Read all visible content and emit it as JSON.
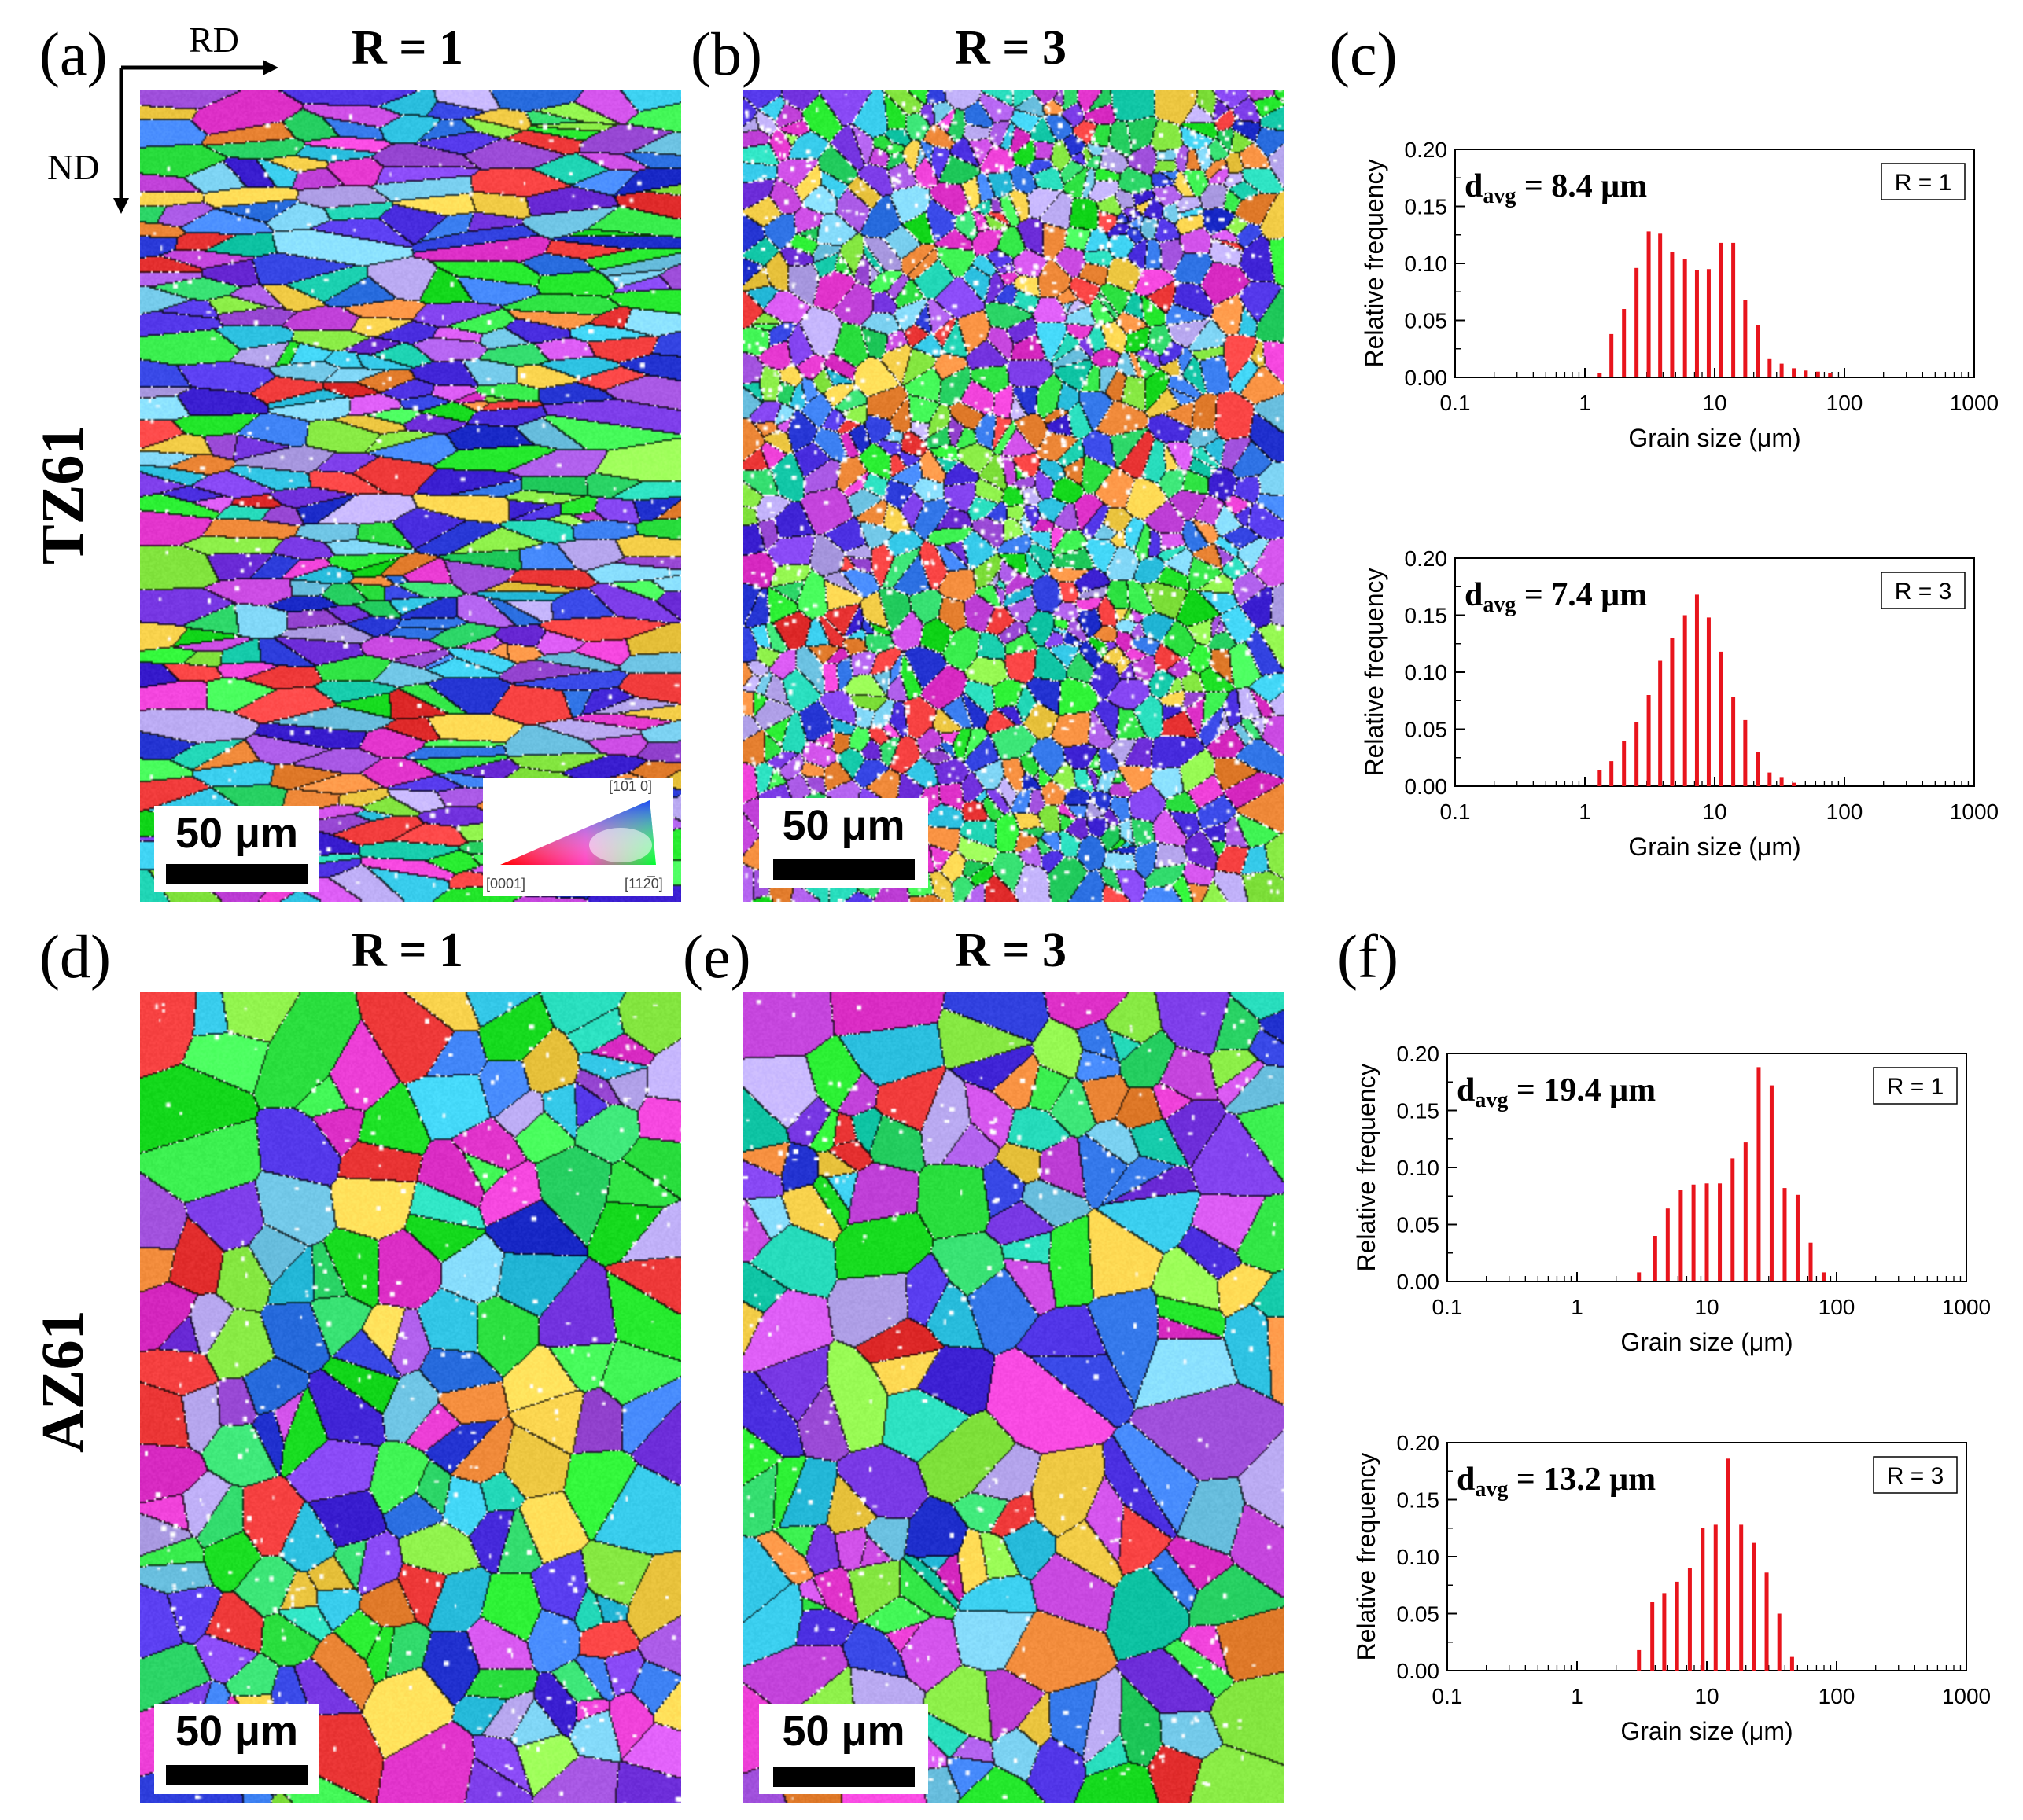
{
  "figure": {
    "panel_labels": [
      "(a)",
      "(b)",
      "(c)",
      "(d)",
      "(e)",
      "(f)"
    ],
    "row_labels": [
      "TZ61",
      "AZ61"
    ],
    "map_titles": [
      "R = 1",
      "R = 3",
      "R = 1",
      "R = 3"
    ],
    "axes_indicator": {
      "horizontal": "RD",
      "vertical": "ND"
    },
    "scale_bar_text": "50 μm",
    "ipf_key": {
      "top": "[10̅1 0]",
      "bottom_left": "[0001]",
      "bottom_right": "[112̅0]"
    },
    "map_palette": [
      "#22e62a",
      "#3cf050",
      "#2fd86a",
      "#1fd4b4",
      "#34c8e8",
      "#3a7ef0",
      "#2a3ad8",
      "#4a2ee0",
      "#7a3ae6",
      "#a454e0",
      "#d050e8",
      "#e83ad2",
      "#ef3a3a",
      "#f08a3a",
      "#f6d04a",
      "#8ef04a",
      "#b8a8f0",
      "#7ad0f0"
    ]
  },
  "chart_data": [
    {
      "id": "c-top",
      "type": "bar",
      "xscale": "log",
      "xlim": [
        0.1,
        1000
      ],
      "ylim": [
        0,
        0.2
      ],
      "xticks": [
        "0.1",
        "1",
        "10",
        "100",
        "1000"
      ],
      "yticks": [
        "0.00",
        "0.05",
        "0.10",
        "0.15",
        "0.20"
      ],
      "xlabel": "Grain size (μm)",
      "ylabel": "Relative frequency",
      "annotation": {
        "prefix": "d",
        "subscript": "avg",
        "text": " = 8.4 μm"
      },
      "legend": "R = 1",
      "color": "#e8141c",
      "x": [
        1.3,
        1.6,
        2.0,
        2.5,
        3.1,
        3.8,
        4.7,
        5.9,
        7.3,
        9.0,
        11.2,
        13.9,
        17.2,
        21.4,
        26.5,
        32.8,
        40.7,
        50.4,
        62.5,
        77.5
      ],
      "values": [
        0.004,
        0.038,
        0.06,
        0.096,
        0.128,
        0.126,
        0.11,
        0.104,
        0.094,
        0.095,
        0.118,
        0.118,
        0.068,
        0.046,
        0.016,
        0.012,
        0.008,
        0.006,
        0.005,
        0.004
      ]
    },
    {
      "id": "c-bottom",
      "type": "bar",
      "xscale": "log",
      "xlim": [
        0.1,
        1000
      ],
      "ylim": [
        0,
        0.2
      ],
      "xticks": [
        "0.1",
        "1",
        "10",
        "100",
        "1000"
      ],
      "yticks": [
        "0.00",
        "0.05",
        "0.10",
        "0.15",
        "0.20"
      ],
      "xlabel": "Grain size (μm)",
      "ylabel": "Relative frequency",
      "annotation": {
        "prefix": "d",
        "subscript": "avg",
        "text": " = 7.4 μm"
      },
      "legend": "R = 3",
      "color": "#e8141c",
      "x": [
        1.3,
        1.6,
        2.0,
        2.5,
        3.1,
        3.8,
        4.7,
        5.9,
        7.3,
        9.0,
        11.2,
        13.9,
        17.2,
        21.4,
        26.5,
        32.8,
        40.7
      ],
      "values": [
        0.014,
        0.022,
        0.04,
        0.056,
        0.08,
        0.11,
        0.13,
        0.15,
        0.168,
        0.148,
        0.118,
        0.078,
        0.058,
        0.03,
        0.012,
        0.008,
        0.003
      ]
    },
    {
      "id": "f-top",
      "type": "bar",
      "xscale": "log",
      "xlim": [
        0.1,
        1000
      ],
      "ylim": [
        0,
        0.2
      ],
      "xticks": [
        "0.1",
        "1",
        "10",
        "100",
        "1000"
      ],
      "yticks": [
        "0.00",
        "0.05",
        "0.10",
        "0.15",
        "0.20"
      ],
      "xlabel": "Grain size (μm)",
      "ylabel": "Relative frequency",
      "annotation": {
        "prefix": "d",
        "subscript": "avg",
        "text": " = 19.4 μm"
      },
      "legend": "R = 1",
      "color": "#e8141c",
      "x": [
        3.0,
        4.0,
        5.0,
        6.3,
        7.9,
        10.0,
        12.6,
        15.8,
        19.9,
        25.1,
        31.6,
        39.8,
        50.1,
        63.1,
        79.4
      ],
      "values": [
        0.008,
        0.04,
        0.064,
        0.08,
        0.085,
        0.086,
        0.086,
        0.108,
        0.122,
        0.188,
        0.172,
        0.082,
        0.076,
        0.034,
        0.008
      ]
    },
    {
      "id": "f-bottom",
      "type": "bar",
      "xscale": "log",
      "xlim": [
        0.1,
        1000
      ],
      "ylim": [
        0,
        0.2
      ],
      "xticks": [
        "0.1",
        "1",
        "10",
        "100",
        "1000"
      ],
      "yticks": [
        "0.00",
        "0.05",
        "0.10",
        "0.15",
        "0.20"
      ],
      "xlabel": "Grain size (μm)",
      "ylabel": "Relative frequency",
      "annotation": {
        "prefix": "d",
        "subscript": "avg",
        "text": " = 13.2 μm"
      },
      "legend": "R = 3",
      "color": "#e8141c",
      "x": [
        3.0,
        3.8,
        4.7,
        5.9,
        7.4,
        9.3,
        11.7,
        14.6,
        18.4,
        23.0,
        28.9,
        36.2,
        45.4
      ],
      "values": [
        0.018,
        0.06,
        0.068,
        0.078,
        0.09,
        0.125,
        0.128,
        0.186,
        0.128,
        0.112,
        0.086,
        0.05,
        0.012
      ]
    }
  ]
}
